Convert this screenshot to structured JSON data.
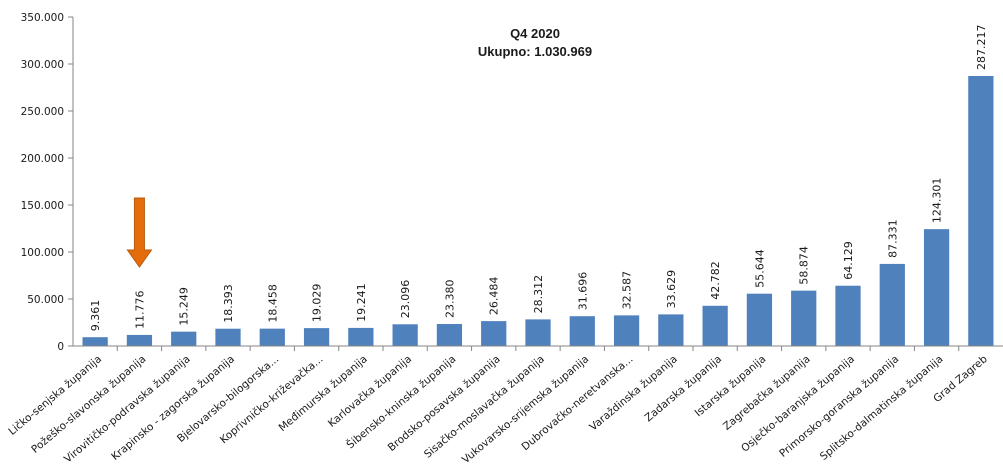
{
  "chart_data": {
    "type": "bar",
    "title": "Q4 2020",
    "subtitle": "Ukupno: 1.030.969",
    "xlabel": "",
    "ylabel": "",
    "ylim": [
      0,
      350000
    ],
    "yticks": [
      "0",
      "50.000",
      "100.000",
      "150.000",
      "200.000",
      "250.000",
      "300.000",
      "350.000"
    ],
    "grid": false,
    "bar_color": "#4f81bd",
    "categories": [
      "Ličko-senjska županija",
      "Požeško-slavonska županija",
      "Virovitičko-podravska županija",
      "Krapinsko - zagorska županija",
      "Bjelovarsko-bilogorska...",
      "Koprivničko-križevačka...",
      "Međimurska županija",
      "Karlovačka županija",
      "Šibensko-kninska županija",
      "Brodsko-posavska županija",
      "Sisačko-moslavačka županija",
      "Vukovarsko-srijemska županija",
      "Dubrovačko-neretvanska...",
      "Varaždinska županija",
      "Zadarska županija",
      "Istarska županija",
      "Zagrebačka županija",
      "Osječko-baranjska županija",
      "Primorsko-goranska županija",
      "Splitsko-dalmatinska županija",
      "Grad Zagreb"
    ],
    "values": [
      9361,
      11776,
      15249,
      18393,
      18458,
      19029,
      19241,
      23096,
      23380,
      26484,
      28312,
      31696,
      32587,
      33629,
      42782,
      55644,
      58874,
      64129,
      87331,
      124301,
      287217
    ],
    "value_labels": [
      "9.361",
      "11.776",
      "15.249",
      "18.393",
      "18.458",
      "19.029",
      "19.241",
      "23.096",
      "23.380",
      "26.484",
      "28.312",
      "31.696",
      "32.587",
      "33.629",
      "42.782",
      "55.644",
      "58.874",
      "64.129",
      "87.331",
      "124.301",
      "287.217"
    ],
    "annotation": {
      "type": "arrow",
      "target": "Požeško-slavonska županija",
      "color": "#e46c0a"
    }
  }
}
